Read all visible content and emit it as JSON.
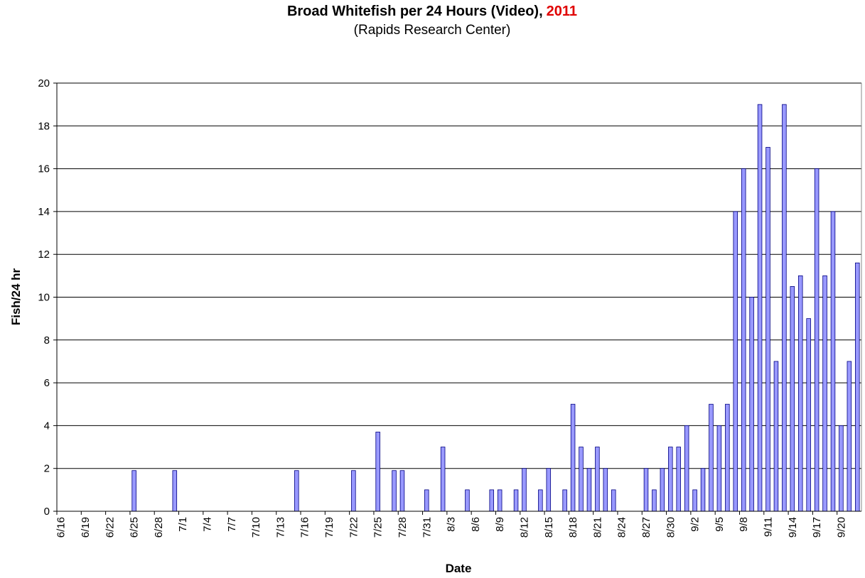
{
  "chart_data": {
    "type": "bar",
    "title": "Broad Whitefish per 24 Hours (Video),",
    "title_highlight": "2011",
    "subtitle": "(Rapids Research Center)",
    "x_label": "Date",
    "y_label": "Fish/24 hr",
    "categories": [
      "6/16",
      null,
      null,
      "6/19",
      null,
      null,
      "6/22",
      null,
      null,
      "6/25",
      null,
      null,
      "6/28",
      null,
      null,
      "7/1",
      null,
      null,
      "7/4",
      null,
      null,
      "7/7",
      null,
      null,
      "7/10",
      null,
      null,
      "7/13",
      null,
      null,
      "7/16",
      null,
      null,
      "7/19",
      null,
      null,
      "7/22",
      null,
      null,
      "7/25",
      null,
      null,
      "7/28",
      null,
      null,
      "7/31",
      null,
      null,
      "8/3",
      null,
      null,
      "8/6",
      null,
      null,
      "8/9",
      null,
      null,
      "8/12",
      null,
      null,
      "8/15",
      null,
      null,
      "8/18",
      null,
      null,
      "8/21",
      null,
      null,
      "8/24",
      null,
      null,
      "8/27",
      null,
      null,
      "8/30",
      null,
      null,
      "9/2",
      null,
      null,
      "9/5",
      null,
      null,
      "9/8",
      null,
      null,
      "9/11",
      null,
      null,
      "9/14",
      null,
      null,
      "9/17",
      null,
      null,
      "9/20",
      null,
      null
    ],
    "values": [
      0,
      0,
      0,
      0,
      0,
      0,
      0,
      0,
      0,
      1.9,
      0,
      0,
      0,
      0,
      1.9,
      0,
      0,
      0,
      0,
      0,
      0,
      0,
      0,
      0,
      0,
      0,
      0,
      0,
      0,
      1.9,
      0,
      0,
      0,
      0,
      0,
      0,
      1.9,
      0,
      0,
      3.7,
      0,
      1.9,
      1.9,
      0,
      0,
      1,
      0,
      3,
      0,
      0,
      1,
      0,
      0,
      1,
      1,
      0,
      1,
      2,
      0,
      1,
      2,
      0,
      1,
      5,
      3,
      2,
      3,
      2,
      1,
      0,
      0,
      0,
      2,
      1,
      2,
      3,
      3,
      4,
      1,
      2,
      5,
      4,
      5,
      14,
      16,
      10,
      19,
      17,
      7,
      19,
      10.5,
      11,
      9,
      16,
      11,
      14,
      4,
      7,
      11.6
    ],
    "color": "#9999ff",
    "ylim": [
      0,
      20
    ],
    "yticks": [
      0,
      2,
      4,
      6,
      8,
      10,
      12,
      14,
      16,
      18,
      20
    ],
    "grid": true
  }
}
